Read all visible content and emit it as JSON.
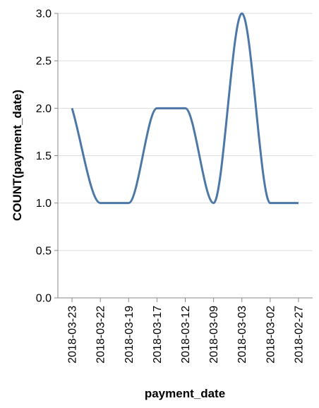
{
  "chart_data": {
    "type": "line",
    "interpolation": "monotone",
    "categories": [
      "2018-03-23",
      "2018-03-22",
      "2018-03-19",
      "2018-03-17",
      "2018-03-12",
      "2018-03-09",
      "2018-03-03",
      "2018-03-02",
      "2018-02-27"
    ],
    "values": [
      2,
      1,
      1,
      2,
      2,
      1,
      3,
      1,
      1
    ],
    "xlabel": "payment_date",
    "ylabel": "COUNT(payment_date)",
    "ylim": [
      0,
      3
    ],
    "yticks": [
      "0.0",
      "0.5",
      "1.0",
      "1.5",
      "2.0",
      "2.5",
      "3.0"
    ],
    "grid": true,
    "colors": {
      "line": "#4c78a8",
      "grid": "#dddddd",
      "axis": "#888888"
    }
  }
}
